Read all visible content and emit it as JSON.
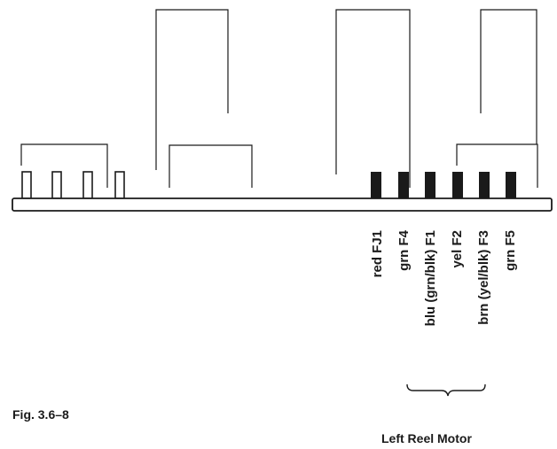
{
  "figure": {
    "caption": "Fig. 3.6–8",
    "motor_label": "Left Reel Motor"
  },
  "connector": {
    "open_pin_count": 4,
    "filled_pin_count": 6,
    "wire_labels": [
      "red FJ1",
      "grn F4",
      "blu (grn/blk) F1",
      "yel F2",
      "brn (yel/blk) F3",
      "grn F5"
    ]
  },
  "colors": {
    "line": "#1a1a1a",
    "pin_fill": "#1a1a1a",
    "background": "#ffffff"
  }
}
